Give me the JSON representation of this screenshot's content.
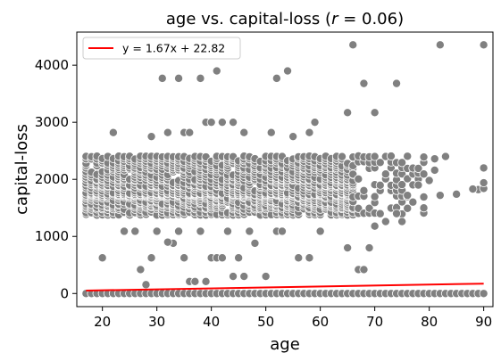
{
  "chart_data": {
    "type": "scatter",
    "title_prefix": "age vs. capital-loss (",
    "title_r": "r",
    "title_suffix": " = 0.06)",
    "xlabel": "age",
    "ylabel": "capital-loss",
    "xlim": [
      15.3,
      91.7
    ],
    "ylim": [
      -230,
      4580
    ],
    "xticks": [
      20,
      30,
      40,
      50,
      60,
      70,
      80,
      90
    ],
    "yticks": [
      0,
      1000,
      2000,
      3000,
      4000
    ],
    "grid": false,
    "legend_position": "top-left",
    "regression": {
      "label": "y = 1.67x + 22.82",
      "slope": 1.67,
      "intercept": 22.82,
      "x_range": [
        17,
        90
      ],
      "color": "#ff0000"
    },
    "point_color": "#808080",
    "point_edge": "#ffffff",
    "zero_row": {
      "x_range": [
        17,
        90
      ],
      "y": 0
    },
    "dense_band": {
      "x_range": [
        17,
        66
      ],
      "y_levels": [
        1380,
        1420,
        1480,
        1510,
        1540,
        1570,
        1600,
        1630,
        1670,
        1700,
        1720,
        1740,
        1760,
        1800,
        1850,
        1880,
        1900,
        1940,
        1980,
        2000,
        2040,
        2080,
        2130,
        2170,
        2200,
        2240,
        2280,
        2320,
        2360,
        2400
      ]
    },
    "sparse_band": {
      "x_range": [
        66,
        79
      ],
      "y_levels": [
        1400,
        1500,
        1600,
        1700,
        1800,
        1900,
        2000,
        2100,
        2200,
        2300,
        2400
      ]
    },
    "points": [
      [
        31,
        3770
      ],
      [
        34,
        3770
      ],
      [
        38,
        3770
      ],
      [
        41,
        3900
      ],
      [
        52,
        3770
      ],
      [
        54,
        3900
      ],
      [
        66,
        4356
      ],
      [
        68,
        3680
      ],
      [
        74,
        3680
      ],
      [
        82,
        4356
      ],
      [
        90,
        4356
      ],
      [
        29,
        2750
      ],
      [
        32,
        2820
      ],
      [
        35,
        2820
      ],
      [
        36,
        2820
      ],
      [
        39,
        3000
      ],
      [
        40,
        3000
      ],
      [
        42,
        3000
      ],
      [
        44,
        3000
      ],
      [
        46,
        2820
      ],
      [
        51,
        2820
      ],
      [
        58,
        2820
      ],
      [
        59,
        3000
      ],
      [
        65,
        3170
      ],
      [
        70,
        3170
      ],
      [
        22,
        2820
      ],
      [
        55,
        2750
      ],
      [
        20,
        625
      ],
      [
        27,
        419
      ],
      [
        28,
        155
      ],
      [
        29,
        625
      ],
      [
        33,
        880
      ],
      [
        34,
        1090
      ],
      [
        35,
        625
      ],
      [
        36,
        210
      ],
      [
        37,
        210
      ],
      [
        39,
        210
      ],
      [
        40,
        625
      ],
      [
        41,
        625
      ],
      [
        42,
        625
      ],
      [
        44,
        300
      ],
      [
        45,
        625
      ],
      [
        46,
        300
      ],
      [
        48,
        880
      ],
      [
        50,
        300
      ],
      [
        52,
        1090
      ],
      [
        56,
        625
      ],
      [
        58,
        625
      ],
      [
        60,
        1090
      ],
      [
        65,
        800
      ],
      [
        67,
        419
      ],
      [
        68,
        419
      ],
      [
        69,
        800
      ],
      [
        24,
        1090
      ],
      [
        26,
        1090
      ],
      [
        30,
        1090
      ],
      [
        32,
        900
      ],
      [
        38,
        1090
      ],
      [
        43,
        1090
      ],
      [
        47,
        1090
      ],
      [
        53,
        1090
      ],
      [
        80,
        1980
      ],
      [
        81,
        2360
      ],
      [
        82,
        1720
      ],
      [
        83,
        2400
      ],
      [
        85,
        1740
      ],
      [
        89,
        1820
      ],
      [
        90,
        1840
      ],
      [
        90,
        1940
      ],
      [
        90,
        2200
      ],
      [
        88,
        1830
      ],
      [
        81,
        2160
      ],
      [
        72,
        1260
      ],
      [
        75,
        1260
      ],
      [
        74,
        1400
      ],
      [
        76,
        1720
      ],
      [
        78,
        1900
      ],
      [
        70,
        1180
      ]
    ]
  }
}
